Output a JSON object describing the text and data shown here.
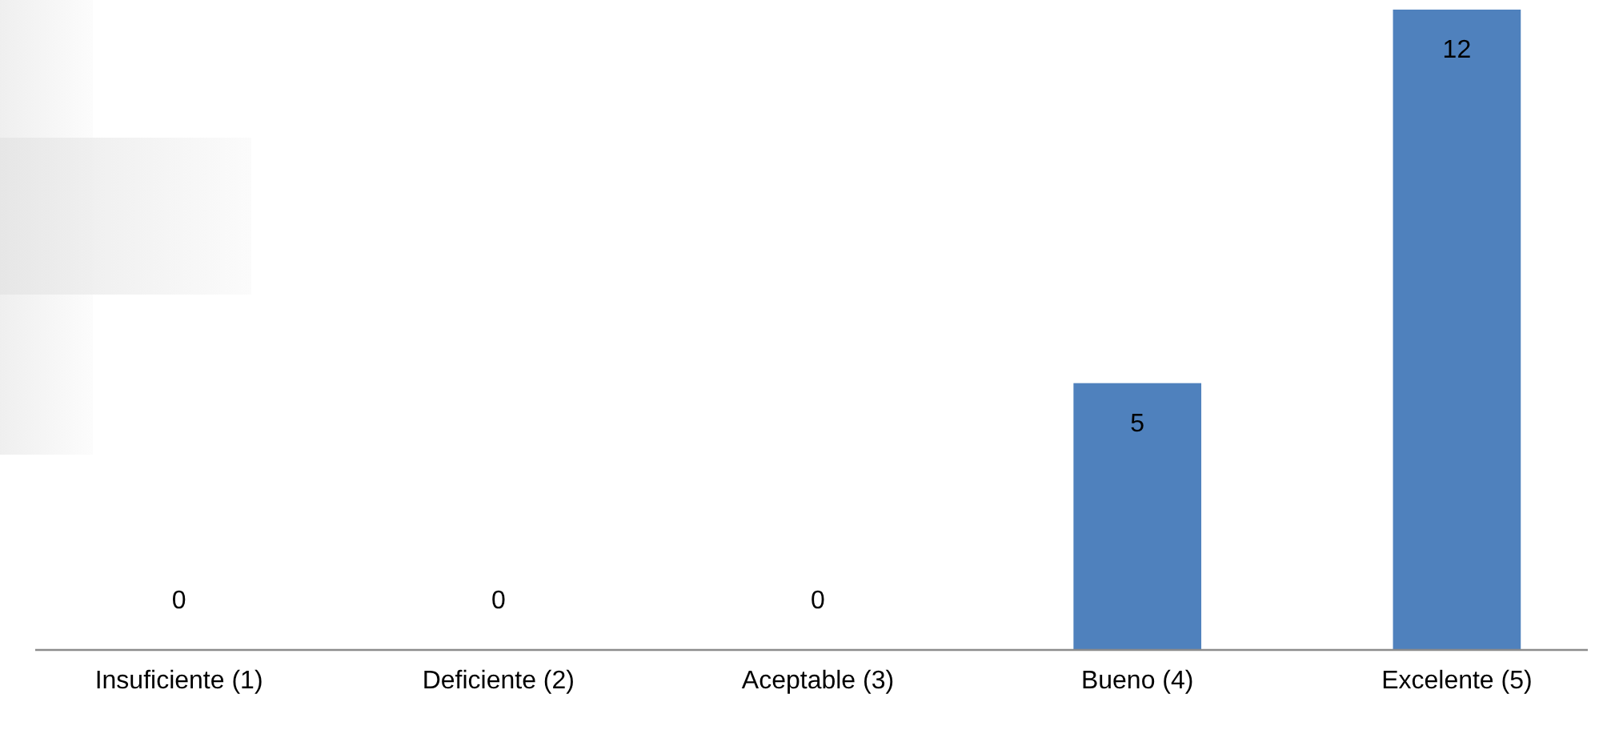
{
  "chart_data": {
    "type": "bar",
    "categories": [
      "Insuficiente (1)",
      "Deficiente (2)",
      "Aceptable (3)",
      "Bueno (4)",
      "Excelente (5)"
    ],
    "values": [
      0,
      0,
      0,
      5,
      12
    ],
    "color": "#4f81bd",
    "data_labels": true
  }
}
